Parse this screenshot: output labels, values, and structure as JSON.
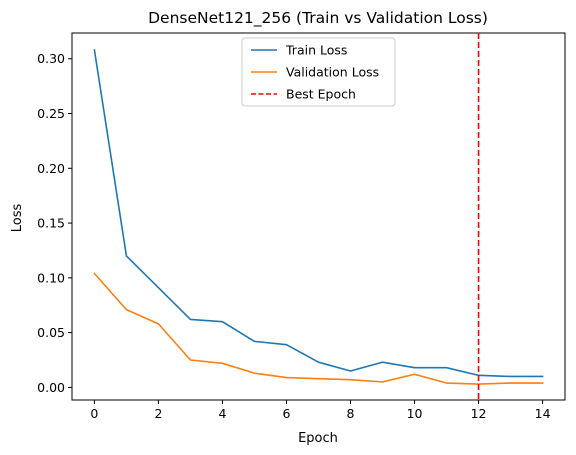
{
  "chart_data": {
    "type": "line",
    "title": "DenseNet121_256 (Train vs Validation Loss)",
    "xlabel": "Epoch",
    "ylabel": "Loss",
    "xlim": [
      -0.7,
      14.7
    ],
    "ylim": [
      -0.0115,
      0.3235
    ],
    "xticks": [
      0,
      2,
      4,
      6,
      8,
      10,
      12,
      14
    ],
    "yticks": [
      0.0,
      0.05,
      0.1,
      0.15,
      0.2,
      0.25,
      0.3
    ],
    "x": [
      0,
      1,
      2,
      3,
      4,
      5,
      6,
      7,
      8,
      9,
      10,
      11,
      12,
      13,
      14
    ],
    "series": [
      {
        "name": "Train Loss",
        "color": "#1f77b4",
        "values": [
          0.308,
          0.12,
          0.091,
          0.062,
          0.06,
          0.042,
          0.039,
          0.023,
          0.015,
          0.023,
          0.018,
          0.018,
          0.011,
          0.01,
          0.01
        ]
      },
      {
        "name": "Validation Loss",
        "color": "#ff7f0e",
        "values": [
          0.104,
          0.071,
          0.058,
          0.025,
          0.022,
          0.013,
          0.009,
          0.008,
          0.007,
          0.005,
          0.012,
          0.004,
          0.003,
          0.004,
          0.004
        ]
      }
    ],
    "vline": {
      "name": "Best Epoch",
      "x": 12,
      "color": "#ff0000",
      "style": "dashed"
    },
    "legend_position": "top-center",
    "grid": false
  }
}
